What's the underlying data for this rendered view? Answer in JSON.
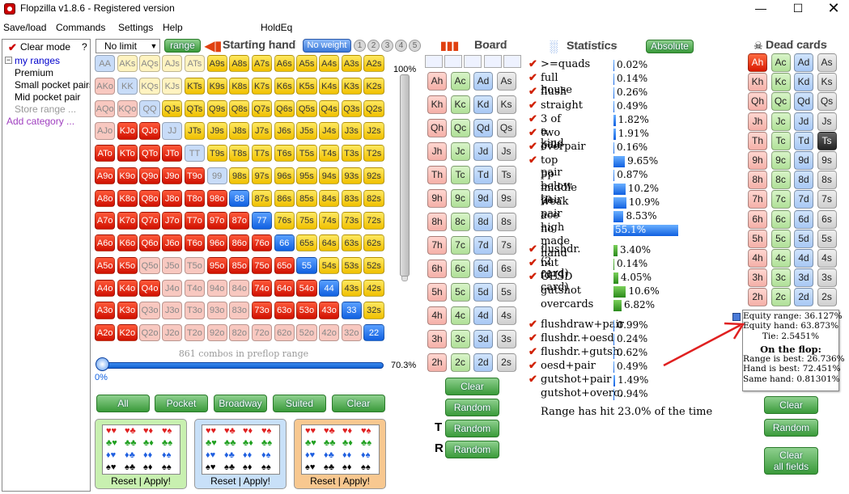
{
  "window": {
    "title": "Flopzilla v1.8.6 - Registered version"
  },
  "menu": [
    "Save/load",
    "Commands",
    "Settings",
    "Help",
    "HoldEq"
  ],
  "left": {
    "clear_mode": "Clear mode",
    "help": "?",
    "root": "my ranges",
    "children": [
      "Premium",
      "Small pocket pairs",
      "Mid pocket pair",
      "Store range ...",
      "Add category ..."
    ]
  },
  "toolbar": {
    "limit": "No limit",
    "range_btn": "range",
    "starting_hand": "Starting hand",
    "no_weight": "No weight",
    "weights": [
      "1",
      "2",
      "3",
      "4",
      "5"
    ]
  },
  "grid": {
    "labels": [
      [
        "AA",
        "AKs",
        "AQs",
        "AJs",
        "ATs",
        "A9s",
        "A8s",
        "A7s",
        "A6s",
        "A5s",
        "A4s",
        "A3s",
        "A2s"
      ],
      [
        "AKo",
        "KK",
        "KQs",
        "KJs",
        "KTs",
        "K9s",
        "K8s",
        "K7s",
        "K6s",
        "K5s",
        "K4s",
        "K3s",
        "K2s"
      ],
      [
        "AQo",
        "KQo",
        "QQ",
        "QJs",
        "QTs",
        "Q9s",
        "Q8s",
        "Q7s",
        "Q6s",
        "Q5s",
        "Q4s",
        "Q3s",
        "Q2s"
      ],
      [
        "AJo",
        "KJo",
        "QJo",
        "JJ",
        "JTs",
        "J9s",
        "J8s",
        "J7s",
        "J6s",
        "J5s",
        "J4s",
        "J3s",
        "J2s"
      ],
      [
        "ATo",
        "KTo",
        "QTo",
        "JTo",
        "TT",
        "T9s",
        "T8s",
        "T7s",
        "T6s",
        "T5s",
        "T4s",
        "T3s",
        "T2s"
      ],
      [
        "A9o",
        "K9o",
        "Q9o",
        "J9o",
        "T9o",
        "99",
        "98s",
        "97s",
        "96s",
        "95s",
        "94s",
        "93s",
        "92s"
      ],
      [
        "A8o",
        "K8o",
        "Q8o",
        "J8o",
        "T8o",
        "98o",
        "88",
        "87s",
        "86s",
        "85s",
        "84s",
        "83s",
        "82s"
      ],
      [
        "A7o",
        "K7o",
        "Q7o",
        "J7o",
        "T7o",
        "97o",
        "87o",
        "77",
        "76s",
        "75s",
        "74s",
        "73s",
        "72s"
      ],
      [
        "A6o",
        "K6o",
        "Q6o",
        "J6o",
        "T6o",
        "96o",
        "86o",
        "76o",
        "66",
        "65s",
        "64s",
        "63s",
        "62s"
      ],
      [
        "A5o",
        "K5o",
        "Q5o",
        "J5o",
        "T5o",
        "95o",
        "85o",
        "75o",
        "65o",
        "55",
        "54s",
        "53s",
        "52s"
      ],
      [
        "A4o",
        "K4o",
        "Q4o",
        "J4o",
        "T4o",
        "94o",
        "84o",
        "74o",
        "64o",
        "54o",
        "44",
        "43s",
        "42s"
      ],
      [
        "A3o",
        "K3o",
        "Q3o",
        "J3o",
        "T3o",
        "93o",
        "83o",
        "73o",
        "63o",
        "53o",
        "43o",
        "33",
        "32s"
      ],
      [
        "A2o",
        "K2o",
        "Q2o",
        "J2o",
        "T2o",
        "92o",
        "82o",
        "72o",
        "62o",
        "52o",
        "42o",
        "32o",
        "22"
      ]
    ],
    "states": [
      "lb|ly|ly|ly|ly|y|y|y|y|y|y|y|y",
      "lr|lb|ly|ly|y|y|y|y|y|y|y|y|y",
      "lr|lr|lb|y|y|y|y|y|y|y|y|y|y",
      "lr|r|r|lb|y|y|y|y|y|y|y|y|y",
      "r|r|r|r|lb|y|y|y|y|y|y|y|y",
      "r|r|r|r|r|lb|y|y|y|y|y|y|y",
      "r|r|r|r|r|r|bl|y|y|y|y|y|y",
      "r|r|r|r|r|r|r|bl|y|y|y|y|y",
      "r|r|r|r|r|r|r|r|bl|y|y|y|y",
      "r|r|lr|lr|lr|r|r|r|r|bl|y|y|y",
      "r|r|r|lr|lr|lr|lr|r|r|r|bl|y|y",
      "r|r|lr|lr|lr|lr|lr|r|r|r|r|bl|y",
      "r|r|lr|lr|lr|lr|lr|lr|lr|lr|lr|lr|bl"
    ],
    "combos_text": "861 combos in preflop range",
    "vslider_top": "100%",
    "hslider_left": "0%",
    "hslider_right": "70.3%"
  },
  "range_buttons": [
    "All",
    "Pocket",
    "Broadway",
    "Suited",
    "Clear"
  ],
  "cards": [
    {
      "reset": "Reset",
      "sep": "|",
      "apply": "Apply!"
    },
    {
      "reset": "Reset",
      "sep": "|",
      "apply": "Apply!"
    },
    {
      "reset": "Reset",
      "sep": "|",
      "apply": "Apply!"
    }
  ],
  "board": {
    "heading": "Board",
    "ranks": [
      "A",
      "K",
      "Q",
      "J",
      "T",
      "9",
      "8",
      "7",
      "6",
      "5",
      "4",
      "3",
      "2"
    ],
    "suits": [
      "h",
      "c",
      "d",
      "s"
    ],
    "clear": "Clear",
    "random": "Random",
    "t_label": "T",
    "r_label": "R",
    "t_random": "Random",
    "r_random": "Random"
  },
  "statistics": {
    "heading": "Statistics",
    "absolute": "Absolute",
    "rows": [
      {
        "label": ">=quads",
        "value": "0.02%",
        "checked": true,
        "pct": 0.02,
        "bar": "blue"
      },
      {
        "label": "full house",
        "value": "0.14%",
        "checked": true,
        "pct": 0.14,
        "bar": "blue"
      },
      {
        "label": "flush",
        "value": "0.26%",
        "checked": true,
        "pct": 0.26,
        "bar": "blue"
      },
      {
        "label": "straight",
        "value": "0.49%",
        "checked": true,
        "pct": 0.49,
        "bar": "blue"
      },
      {
        "label": "3 of a kind",
        "value": "1.82%",
        "checked": true,
        "pct": 1.82,
        "bar": "blue"
      },
      {
        "label": "two pair",
        "value": "1.91%",
        "checked": true,
        "pct": 1.91,
        "bar": "blue"
      },
      {
        "label": "overpair",
        "value": "0.16%",
        "checked": true,
        "pct": 0.16,
        "bar": "blue"
      },
      {
        "label": "top pair",
        "value": "9.65%",
        "checked": true,
        "pct": 9.65,
        "bar": "blue"
      },
      {
        "label": "pp below tp",
        "value": "0.87%",
        "checked": false,
        "pct": 0.87,
        "bar": "blue"
      },
      {
        "label": "middle pair",
        "value": "10.2%",
        "checked": false,
        "pct": 10.2,
        "bar": "blue"
      },
      {
        "label": "weak pair",
        "value": "10.9%",
        "checked": false,
        "pct": 10.9,
        "bar": "blue"
      },
      {
        "label": "ace high",
        "value": "8.53%",
        "checked": false,
        "pct": 8.53,
        "bar": "blue"
      },
      {
        "label": "no made hand",
        "value": "55.1%",
        "checked": false,
        "pct": 55.1,
        "bar": "blue"
      },
      {
        "label": "flushdr.(2 card)",
        "value": "3.40%",
        "checked": true,
        "pct": 3.4,
        "bar": "green"
      },
      {
        "label": "nut fd (1 card)",
        "value": "0.14%",
        "checked": true,
        "pct": 0.14,
        "bar": "green"
      },
      {
        "label": "OESD",
        "value": "4.05%",
        "checked": true,
        "pct": 4.05,
        "bar": "green"
      },
      {
        "label": "gutshot",
        "value": "10.6%",
        "checked": false,
        "pct": 10.6,
        "bar": "green"
      },
      {
        "label": "overcards",
        "value": "6.82%",
        "checked": false,
        "pct": 6.82,
        "bar": "green"
      },
      {
        "label": "flushdraw+pair",
        "value": "0.99%",
        "checked": true,
        "pct": 0.99,
        "bar": "blue"
      },
      {
        "label": "flushdr.+oesd",
        "value": "0.24%",
        "checked": true,
        "pct": 0.24,
        "bar": "blue"
      },
      {
        "label": "flushdr.+gutsh.",
        "value": "0.62%",
        "checked": true,
        "pct": 0.62,
        "bar": "blue"
      },
      {
        "label": "oesd+pair",
        "value": "0.49%",
        "checked": true,
        "pct": 0.49,
        "bar": "blue"
      },
      {
        "label": "gutshot+pair",
        "value": "1.49%",
        "checked": true,
        "pct": 1.49,
        "bar": "blue"
      },
      {
        "label": "gutshot+overc.",
        "value": "0.94%",
        "checked": false,
        "pct": 0.94,
        "bar": "blue"
      }
    ],
    "summary": "Range has hit 23.0% of the time"
  },
  "dead": {
    "heading": "Dead cards",
    "clear": "Clear",
    "random": "Random",
    "clear_all": "Clear\nall fields"
  },
  "tooltip": {
    "lines": [
      "Equity range: 36.127%",
      "Equity hand: 63.873%",
      "Tie: 2.5451%"
    ],
    "flop_heading": "On the flop:",
    "flop_lines": [
      "Range is best: 26.736%",
      "Hand is best: 72.451%",
      "Same hand: 0.81301%"
    ]
  },
  "colors": {
    "accent_red": "#d01000",
    "accent_green": "#3a9a3a",
    "accent_blue": "#1060e0",
    "annotation_arrow": "#e02020"
  }
}
